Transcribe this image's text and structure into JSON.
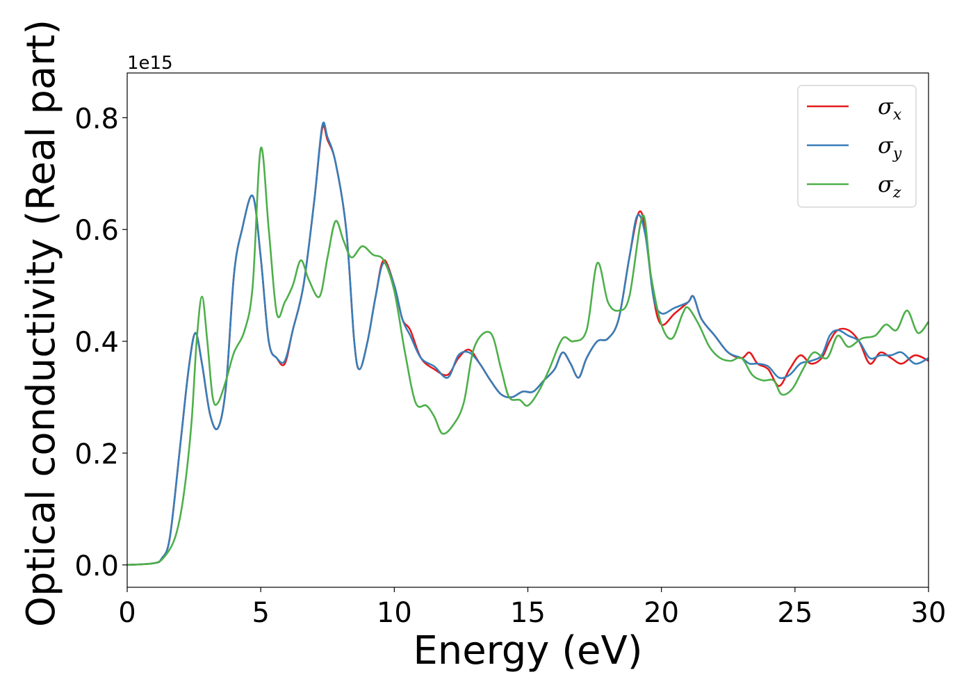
{
  "chart_data": {
    "type": "line",
    "xlabel": "Energy (eV)",
    "ylabel": "Optical conductivity (Real part)",
    "y_offset_label": "1e15",
    "xlim": [
      0,
      30
    ],
    "ylim": [
      -0.04,
      0.88
    ],
    "xticks": [
      0,
      5,
      10,
      15,
      20,
      25,
      30
    ],
    "xtick_labels": [
      "0",
      "5",
      "10",
      "15",
      "20",
      "25",
      "30"
    ],
    "yticks": [
      0.0,
      0.2,
      0.4,
      0.6,
      0.8
    ],
    "ytick_labels": [
      "0.0",
      "0.2",
      "0.4",
      "0.6",
      "0.8"
    ],
    "grid": false,
    "legend_position": "top-right",
    "series": [
      {
        "name": "σx",
        "symbol": "σ",
        "subscript": "x",
        "color": "#e41a1c",
        "points": [
          [
            0,
            0
          ],
          [
            1,
            0.003
          ],
          [
            1.3,
            0.012
          ],
          [
            1.6,
            0.05
          ],
          [
            2.0,
            0.22
          ],
          [
            2.3,
            0.35
          ],
          [
            2.55,
            0.415
          ],
          [
            2.8,
            0.36
          ],
          [
            3.1,
            0.27
          ],
          [
            3.4,
            0.245
          ],
          [
            3.7,
            0.32
          ],
          [
            4.0,
            0.52
          ],
          [
            4.3,
            0.6
          ],
          [
            4.7,
            0.66
          ],
          [
            5.0,
            0.55
          ],
          [
            5.3,
            0.4
          ],
          [
            5.6,
            0.37
          ],
          [
            5.9,
            0.36
          ],
          [
            6.2,
            0.42
          ],
          [
            6.6,
            0.5
          ],
          [
            7.0,
            0.65
          ],
          [
            7.3,
            0.78
          ],
          [
            7.5,
            0.76
          ],
          [
            7.8,
            0.72
          ],
          [
            8.2,
            0.6
          ],
          [
            8.5,
            0.4
          ],
          [
            8.7,
            0.35
          ],
          [
            9.0,
            0.4
          ],
          [
            9.3,
            0.48
          ],
          [
            9.6,
            0.545
          ],
          [
            10.0,
            0.5
          ],
          [
            10.3,
            0.44
          ],
          [
            10.6,
            0.42
          ],
          [
            11.0,
            0.37
          ],
          [
            11.5,
            0.35
          ],
          [
            12.0,
            0.34
          ],
          [
            12.4,
            0.37
          ],
          [
            12.8,
            0.385
          ],
          [
            13.2,
            0.36
          ],
          [
            13.6,
            0.33
          ],
          [
            14.0,
            0.305
          ],
          [
            14.4,
            0.3
          ],
          [
            14.8,
            0.31
          ],
          [
            15.2,
            0.31
          ],
          [
            15.6,
            0.33
          ],
          [
            16.0,
            0.35
          ],
          [
            16.3,
            0.38
          ],
          [
            16.6,
            0.36
          ],
          [
            16.9,
            0.335
          ],
          [
            17.2,
            0.37
          ],
          [
            17.6,
            0.4
          ],
          [
            18.0,
            0.405
          ],
          [
            18.4,
            0.44
          ],
          [
            18.8,
            0.55
          ],
          [
            19.15,
            0.63
          ],
          [
            19.4,
            0.6
          ],
          [
            19.7,
            0.48
          ],
          [
            20.0,
            0.43
          ],
          [
            20.5,
            0.45
          ],
          [
            21.0,
            0.47
          ],
          [
            21.2,
            0.48
          ],
          [
            21.5,
            0.44
          ],
          [
            22.0,
            0.41
          ],
          [
            22.5,
            0.38
          ],
          [
            23.0,
            0.37
          ],
          [
            23.3,
            0.38
          ],
          [
            23.6,
            0.36
          ],
          [
            24.0,
            0.35
          ],
          [
            24.4,
            0.32
          ],
          [
            24.8,
            0.35
          ],
          [
            25.2,
            0.375
          ],
          [
            25.6,
            0.36
          ],
          [
            26.0,
            0.37
          ],
          [
            26.3,
            0.4
          ],
          [
            26.6,
            0.42
          ],
          [
            27.0,
            0.42
          ],
          [
            27.4,
            0.4
          ],
          [
            27.8,
            0.36
          ],
          [
            28.2,
            0.38
          ],
          [
            28.6,
            0.37
          ],
          [
            29.0,
            0.36
          ],
          [
            29.5,
            0.375
          ],
          [
            30.0,
            0.365
          ]
        ]
      },
      {
        "name": "σy",
        "symbol": "σ",
        "subscript": "y",
        "color": "#377eb8",
        "points": [
          [
            0,
            0
          ],
          [
            1,
            0.003
          ],
          [
            1.3,
            0.012
          ],
          [
            1.6,
            0.05
          ],
          [
            2.0,
            0.22
          ],
          [
            2.3,
            0.35
          ],
          [
            2.55,
            0.415
          ],
          [
            2.8,
            0.36
          ],
          [
            3.1,
            0.27
          ],
          [
            3.4,
            0.245
          ],
          [
            3.7,
            0.32
          ],
          [
            4.0,
            0.52
          ],
          [
            4.3,
            0.6
          ],
          [
            4.7,
            0.66
          ],
          [
            5.0,
            0.55
          ],
          [
            5.3,
            0.4
          ],
          [
            5.6,
            0.37
          ],
          [
            5.9,
            0.365
          ],
          [
            6.2,
            0.42
          ],
          [
            6.6,
            0.5
          ],
          [
            7.0,
            0.65
          ],
          [
            7.3,
            0.785
          ],
          [
            7.5,
            0.765
          ],
          [
            7.8,
            0.72
          ],
          [
            8.2,
            0.6
          ],
          [
            8.5,
            0.4
          ],
          [
            8.7,
            0.35
          ],
          [
            9.0,
            0.4
          ],
          [
            9.3,
            0.48
          ],
          [
            9.6,
            0.54
          ],
          [
            10.0,
            0.5
          ],
          [
            10.3,
            0.44
          ],
          [
            10.6,
            0.41
          ],
          [
            11.0,
            0.37
          ],
          [
            11.5,
            0.355
          ],
          [
            12.0,
            0.335
          ],
          [
            12.4,
            0.375
          ],
          [
            12.8,
            0.38
          ],
          [
            13.2,
            0.36
          ],
          [
            13.6,
            0.33
          ],
          [
            14.0,
            0.305
          ],
          [
            14.4,
            0.3
          ],
          [
            14.8,
            0.31
          ],
          [
            15.2,
            0.31
          ],
          [
            15.6,
            0.33
          ],
          [
            16.0,
            0.35
          ],
          [
            16.3,
            0.38
          ],
          [
            16.6,
            0.36
          ],
          [
            16.9,
            0.335
          ],
          [
            17.2,
            0.37
          ],
          [
            17.6,
            0.4
          ],
          [
            18.0,
            0.405
          ],
          [
            18.4,
            0.44
          ],
          [
            18.8,
            0.55
          ],
          [
            19.1,
            0.625
          ],
          [
            19.4,
            0.59
          ],
          [
            19.7,
            0.48
          ],
          [
            20.0,
            0.45
          ],
          [
            20.5,
            0.46
          ],
          [
            21.0,
            0.47
          ],
          [
            21.2,
            0.48
          ],
          [
            21.5,
            0.44
          ],
          [
            22.0,
            0.41
          ],
          [
            22.5,
            0.38
          ],
          [
            23.0,
            0.37
          ],
          [
            23.3,
            0.36
          ],
          [
            23.6,
            0.36
          ],
          [
            24.0,
            0.355
          ],
          [
            24.4,
            0.335
          ],
          [
            24.8,
            0.34
          ],
          [
            25.2,
            0.36
          ],
          [
            25.6,
            0.365
          ],
          [
            26.0,
            0.375
          ],
          [
            26.3,
            0.41
          ],
          [
            26.6,
            0.42
          ],
          [
            27.0,
            0.41
          ],
          [
            27.4,
            0.4
          ],
          [
            27.8,
            0.37
          ],
          [
            28.2,
            0.375
          ],
          [
            28.6,
            0.375
          ],
          [
            29.0,
            0.38
          ],
          [
            29.5,
            0.36
          ],
          [
            30.0,
            0.37
          ]
        ]
      },
      {
        "name": "σz",
        "symbol": "σ",
        "subscript": "z",
        "color": "#4daf4a",
        "points": [
          [
            0,
            0
          ],
          [
            1,
            0.003
          ],
          [
            1.4,
            0.015
          ],
          [
            1.8,
            0.05
          ],
          [
            2.1,
            0.12
          ],
          [
            2.4,
            0.25
          ],
          [
            2.6,
            0.4
          ],
          [
            2.8,
            0.48
          ],
          [
            3.0,
            0.4
          ],
          [
            3.2,
            0.3
          ],
          [
            3.4,
            0.29
          ],
          [
            3.7,
            0.33
          ],
          [
            4.0,
            0.38
          ],
          [
            4.4,
            0.42
          ],
          [
            4.7,
            0.5
          ],
          [
            5.0,
            0.745
          ],
          [
            5.3,
            0.6
          ],
          [
            5.6,
            0.45
          ],
          [
            5.9,
            0.47
          ],
          [
            6.2,
            0.5
          ],
          [
            6.5,
            0.545
          ],
          [
            6.8,
            0.51
          ],
          [
            7.2,
            0.48
          ],
          [
            7.5,
            0.55
          ],
          [
            7.8,
            0.615
          ],
          [
            8.1,
            0.58
          ],
          [
            8.4,
            0.55
          ],
          [
            8.8,
            0.57
          ],
          [
            9.2,
            0.555
          ],
          [
            9.6,
            0.545
          ],
          [
            10.0,
            0.49
          ],
          [
            10.4,
            0.38
          ],
          [
            10.8,
            0.29
          ],
          [
            11.2,
            0.285
          ],
          [
            11.5,
            0.265
          ],
          [
            11.8,
            0.235
          ],
          [
            12.2,
            0.25
          ],
          [
            12.6,
            0.29
          ],
          [
            13.0,
            0.39
          ],
          [
            13.6,
            0.415
          ],
          [
            14.0,
            0.35
          ],
          [
            14.3,
            0.3
          ],
          [
            14.7,
            0.295
          ],
          [
            15.0,
            0.285
          ],
          [
            15.4,
            0.31
          ],
          [
            15.8,
            0.35
          ],
          [
            16.3,
            0.405
          ],
          [
            16.7,
            0.4
          ],
          [
            17.2,
            0.42
          ],
          [
            17.6,
            0.54
          ],
          [
            18.0,
            0.47
          ],
          [
            18.4,
            0.455
          ],
          [
            18.8,
            0.48
          ],
          [
            19.3,
            0.625
          ],
          [
            19.6,
            0.52
          ],
          [
            20.0,
            0.43
          ],
          [
            20.4,
            0.405
          ],
          [
            20.8,
            0.45
          ],
          [
            21.0,
            0.46
          ],
          [
            21.4,
            0.43
          ],
          [
            21.8,
            0.39
          ],
          [
            22.2,
            0.37
          ],
          [
            22.6,
            0.365
          ],
          [
            23.0,
            0.37
          ],
          [
            23.4,
            0.34
          ],
          [
            23.8,
            0.33
          ],
          [
            24.2,
            0.33
          ],
          [
            24.5,
            0.305
          ],
          [
            24.9,
            0.315
          ],
          [
            25.3,
            0.35
          ],
          [
            25.7,
            0.38
          ],
          [
            26.2,
            0.37
          ],
          [
            26.6,
            0.41
          ],
          [
            27.0,
            0.39
          ],
          [
            27.5,
            0.405
          ],
          [
            28.0,
            0.41
          ],
          [
            28.4,
            0.43
          ],
          [
            28.8,
            0.42
          ],
          [
            29.2,
            0.455
          ],
          [
            29.6,
            0.415
          ],
          [
            30.0,
            0.435
          ]
        ]
      }
    ]
  }
}
